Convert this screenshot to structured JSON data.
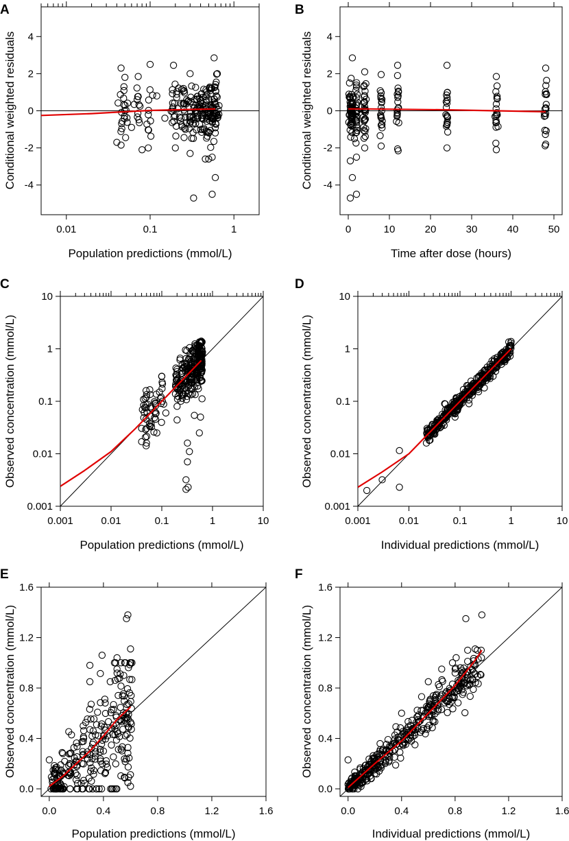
{
  "figure": {
    "colors": {
      "points": "#000000",
      "smooth": "#e00000",
      "reference": "#000000",
      "background": "#ffffff"
    },
    "panels": [
      {
        "id": "A",
        "label": "A",
        "xlabel": "Population predictions (mmol/L)",
        "ylabel": "Conditional weighted residuals",
        "xscale": "log",
        "yscale": "linear",
        "xlim": [
          0.005,
          2.0
        ],
        "ylim": [
          -5.6,
          5.6
        ],
        "xticks": [
          0.01,
          0.1,
          1
        ],
        "xticklabels": [
          "0.01",
          "0.1",
          "1"
        ],
        "yticks": [
          -4,
          -2,
          0,
          2,
          4
        ],
        "yticklabels": [
          "-4",
          "-2",
          "0",
          "2",
          "4"
        ],
        "top_minor_ticks": true,
        "reference": {
          "type": "hline",
          "y": 0
        },
        "smooth": [
          [
            0.005,
            -0.25
          ],
          [
            0.02,
            -0.15
          ],
          [
            0.05,
            -0.05
          ],
          [
            0.1,
            0.02
          ],
          [
            0.3,
            0.07
          ],
          [
            0.6,
            0.1
          ]
        ],
        "cluster_centers": [
          0.045,
          0.05,
          0.072,
          0.1,
          0.2,
          0.25,
          0.3,
          0.35,
          0.4,
          0.45,
          0.5,
          0.55,
          0.58,
          0.6
        ],
        "points": [
          [
            0.045,
            2.3
          ],
          [
            0.05,
            1.8
          ],
          [
            0.072,
            1.85
          ],
          [
            0.1,
            2.5
          ],
          [
            0.19,
            2.45
          ],
          [
            0.3,
            2.0
          ],
          [
            0.58,
            2.85
          ],
          [
            0.04,
            -1.7
          ],
          [
            0.045,
            -1.85
          ],
          [
            0.08,
            -2.1
          ],
          [
            0.095,
            -2.0
          ],
          [
            0.2,
            -2.0
          ],
          [
            0.3,
            -2.3
          ],
          [
            0.5,
            -2.6
          ],
          [
            0.55,
            -2.5
          ],
          [
            0.6,
            -3.6
          ],
          [
            0.33,
            -4.7
          ],
          [
            0.55,
            -4.5
          ],
          [
            0.07,
            0.6
          ],
          [
            0.12,
            0.8
          ],
          [
            0.25,
            1.2
          ],
          [
            0.4,
            -1.0
          ],
          [
            0.06,
            -0.9
          ],
          [
            0.15,
            -0.4
          ]
        ]
      },
      {
        "id": "B",
        "label": "B",
        "xlabel": "Time after dose (hours)",
        "ylabel": "Conditional weighted residuals",
        "xscale": "linear",
        "yscale": "linear",
        "xlim": [
          -2,
          52
        ],
        "ylim": [
          -5.6,
          5.6
        ],
        "xticks": [
          0,
          10,
          20,
          30,
          40,
          50
        ],
        "xticklabels": [
          "0",
          "10",
          "20",
          "30",
          "40",
          "50"
        ],
        "yticks": [
          -4,
          -2,
          0,
          2,
          4
        ],
        "yticklabels": [
          "-4",
          "-2",
          "0",
          "2",
          "4"
        ],
        "top_minor_ticks": false,
        "reference": {
          "type": "hline",
          "y": 0
        },
        "smooth": [
          [
            0,
            0.1
          ],
          [
            5,
            0.1
          ],
          [
            12,
            0.08
          ],
          [
            24,
            0.05
          ],
          [
            36,
            0.0
          ],
          [
            48,
            -0.05
          ]
        ],
        "cluster_centers": [
          0.5,
          1,
          2,
          4,
          8,
          12,
          24,
          36,
          48
        ],
        "points": [
          [
            1,
            2.85
          ],
          [
            4,
            2.1
          ],
          [
            8,
            1.95
          ],
          [
            12,
            2.45
          ],
          [
            24,
            2.45
          ],
          [
            36,
            1.85
          ],
          [
            48,
            2.3
          ],
          [
            0.5,
            -4.7
          ],
          [
            2,
            -4.5
          ],
          [
            1,
            -3.6
          ],
          [
            0.5,
            -2.7
          ],
          [
            2,
            -2.5
          ],
          [
            4,
            -2.0
          ],
          [
            8,
            -1.9
          ],
          [
            12,
            -2.05
          ],
          [
            24,
            -2.0
          ],
          [
            36,
            -2.1
          ],
          [
            48,
            -1.8
          ],
          [
            0.3,
            1.5
          ],
          [
            1.5,
            -1.5
          ]
        ]
      },
      {
        "id": "C",
        "label": "C",
        "xlabel": "Population predictions (mmol/L)",
        "ylabel": "Observed concentration (mmol/L)",
        "xscale": "log",
        "yscale": "log",
        "xlim": [
          0.001,
          10
        ],
        "ylim": [
          0.001,
          10
        ],
        "xticks": [
          0.001,
          0.01,
          0.1,
          1,
          10
        ],
        "xticklabels": [
          "0.001",
          "0.01",
          "0.1",
          "1",
          "10"
        ],
        "yticks": [
          0.001,
          0.01,
          0.1,
          1,
          10
        ],
        "yticklabels": [
          "0.001",
          "0.01",
          "0.1",
          "1",
          "10"
        ],
        "top_minor_ticks": true,
        "reference": {
          "type": "identity"
        },
        "smooth": [
          [
            0.001,
            0.0024
          ],
          [
            0.003,
            0.0048
          ],
          [
            0.01,
            0.011
          ],
          [
            0.03,
            0.03
          ],
          [
            0.1,
            0.1
          ],
          [
            0.3,
            0.3
          ],
          [
            0.6,
            0.6
          ]
        ],
        "points": [
          [
            0.3,
            0.0032
          ],
          [
            0.3,
            0.0021
          ],
          [
            0.33,
            0.0023
          ],
          [
            0.32,
            0.007
          ],
          [
            0.35,
            0.011
          ],
          [
            0.32,
            0.016
          ],
          [
            0.04,
            0.017
          ],
          [
            0.05,
            0.016
          ],
          [
            0.07,
            0.026
          ],
          [
            0.08,
            0.025
          ],
          [
            0.55,
            0.025
          ],
          [
            0.05,
            0.12
          ],
          [
            0.1,
            0.3
          ],
          [
            0.58,
            0.05
          ],
          [
            0.6,
            1.4
          ],
          [
            0.55,
            1.35
          ],
          [
            0.2,
            0.08
          ],
          [
            0.25,
            0.22
          ],
          [
            0.4,
            0.9
          ],
          [
            0.3,
            0.65
          ],
          [
            0.09,
            0.15
          ],
          [
            0.12,
            0.06
          ]
        ]
      },
      {
        "id": "D",
        "label": "D",
        "xlabel": "Individual predictions (mmol/L)",
        "ylabel": "Observed concentration (mmol/L)",
        "xscale": "log",
        "yscale": "log",
        "xlim": [
          0.001,
          10
        ],
        "ylim": [
          0.001,
          10
        ],
        "xticks": [
          0.001,
          0.01,
          0.1,
          1,
          10
        ],
        "xticklabels": [
          "0.001",
          "0.01",
          "0.1",
          "1",
          "10"
        ],
        "yticks": [
          0.001,
          0.01,
          0.1,
          1,
          10
        ],
        "yticklabels": [
          "0.001",
          "0.01",
          "0.1",
          "1",
          "10"
        ],
        "top_minor_ticks": true,
        "reference": {
          "type": "identity"
        },
        "smooth": [
          [
            0.001,
            0.0023
          ],
          [
            0.003,
            0.0045
          ],
          [
            0.01,
            0.01
          ],
          [
            0.03,
            0.03
          ],
          [
            0.1,
            0.1
          ],
          [
            0.3,
            0.3
          ],
          [
            1.0,
            1.0
          ]
        ],
        "points": [
          [
            0.0015,
            0.002
          ],
          [
            0.003,
            0.0032
          ],
          [
            0.0065,
            0.0115
          ],
          [
            0.0065,
            0.0023
          ],
          [
            0.022,
            0.016
          ],
          [
            0.025,
            0.018
          ],
          [
            0.03,
            0.025
          ],
          [
            0.9,
            1.35
          ],
          [
            1.0,
            1.38
          ],
          [
            0.08,
            0.05
          ],
          [
            0.15,
            0.09
          ],
          [
            0.3,
            0.18
          ],
          [
            0.05,
            0.09
          ]
        ]
      },
      {
        "id": "E",
        "label": "E",
        "xlabel": "Population predictions (mmol/L)",
        "ylabel": "Observed concentration (mmol/L)",
        "xscale": "linear",
        "yscale": "linear",
        "xlim": [
          -0.06,
          1.6
        ],
        "ylim": [
          -0.06,
          1.6
        ],
        "xticks": [
          0.0,
          0.4,
          0.8,
          1.2,
          1.6
        ],
        "xticklabels": [
          "0.0",
          "0.4",
          "0.8",
          "1.2",
          "1.6"
        ],
        "yticks": [
          0.0,
          0.4,
          0.8,
          1.2,
          1.6
        ],
        "yticklabels": [
          "0.0",
          "0.4",
          "0.8",
          "1.2",
          "1.6"
        ],
        "top_minor_ticks": false,
        "reference": {
          "type": "identity"
        },
        "smooth": [
          [
            0.0,
            0.02
          ],
          [
            0.1,
            0.1
          ],
          [
            0.2,
            0.2
          ],
          [
            0.3,
            0.3
          ],
          [
            0.4,
            0.42
          ],
          [
            0.5,
            0.55
          ],
          [
            0.6,
            0.65
          ]
        ],
        "points": [
          [
            0.0,
            0.23
          ],
          [
            0.58,
            1.38
          ],
          [
            0.57,
            1.35
          ],
          [
            0.6,
            1.11
          ],
          [
            0.39,
            1.06
          ],
          [
            0.5,
            1.04
          ],
          [
            0.3,
            0.98
          ],
          [
            0.5,
            0.95
          ],
          [
            0.55,
            0.9
          ],
          [
            0.45,
            0.85
          ],
          [
            0.3,
            0.85
          ],
          [
            0.25,
            0.5
          ],
          [
            0.1,
            0.28
          ],
          [
            0.32,
            0.0
          ],
          [
            0.35,
            0.0
          ],
          [
            0.58,
            0.05
          ],
          [
            0.6,
            0.02
          ],
          [
            0.05,
            0.02
          ],
          [
            0.15,
            0.2
          ],
          [
            0.4,
            0.3
          ]
        ]
      },
      {
        "id": "F",
        "label": "F",
        "xlabel": "Individual predictions (mmol/L)",
        "ylabel": "Observed concentration (mmol/L)",
        "xscale": "linear",
        "yscale": "linear",
        "xlim": [
          -0.06,
          1.6
        ],
        "ylim": [
          -0.06,
          1.6
        ],
        "xticks": [
          0.0,
          0.4,
          0.8,
          1.2,
          1.6
        ],
        "xticklabels": [
          "0.0",
          "0.4",
          "0.8",
          "1.2",
          "1.6"
        ],
        "yticks": [
          0.0,
          0.4,
          0.8,
          1.2,
          1.6
        ],
        "yticklabels": [
          "0.0",
          "0.4",
          "0.8",
          "1.2",
          "1.6"
        ],
        "top_minor_ticks": false,
        "reference": {
          "type": "identity"
        },
        "smooth": [
          [
            0.0,
            0.01
          ],
          [
            0.2,
            0.2
          ],
          [
            0.4,
            0.38
          ],
          [
            0.6,
            0.6
          ],
          [
            0.8,
            0.82
          ],
          [
            0.95,
            1.02
          ],
          [
            1.0,
            1.1
          ]
        ],
        "points": [
          [
            0.0,
            0.23
          ],
          [
            1.0,
            1.38
          ],
          [
            0.88,
            1.35
          ],
          [
            0.95,
            1.11
          ],
          [
            0.84,
            0.82
          ],
          [
            0.84,
            0.84
          ],
          [
            0.78,
            1.0
          ],
          [
            0.6,
            0.85
          ],
          [
            0.4,
            0.6
          ],
          [
            0.7,
            0.95
          ],
          [
            0.8,
            0.95
          ],
          [
            0.2,
            0.12
          ],
          [
            0.5,
            0.35
          ]
        ]
      }
    ]
  }
}
